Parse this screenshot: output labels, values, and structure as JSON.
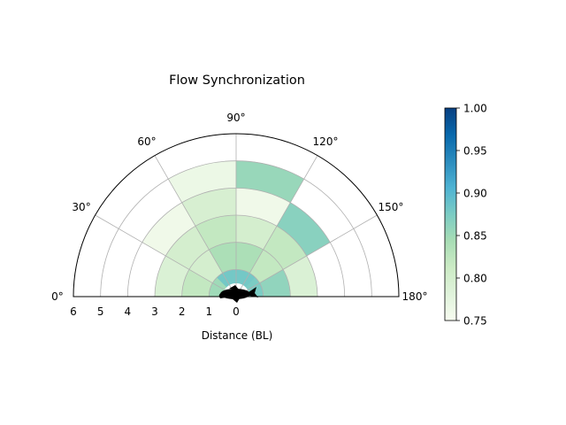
{
  "chart_data": {
    "type": "heatmap",
    "title": "Flow Synchronization",
    "xlabel": "Distance (BL)",
    "radial_range": [
      0,
      6
    ],
    "radial_ticks": [
      "6",
      "5",
      "4",
      "3",
      "2",
      "1",
      "0"
    ],
    "angle_range_deg": [
      0,
      180
    ],
    "angle_ticks": [
      "0°",
      "30°",
      "60°",
      "90°",
      "120°",
      "150°",
      "180°"
    ],
    "grid": true,
    "colormap": "GnBu",
    "colorbar": {
      "vmin": 0.75,
      "vmax": 1.0,
      "ticks": [
        "0.75",
        "0.80",
        "0.85",
        "0.90",
        "0.95",
        "1.00"
      ]
    },
    "sectors": [
      {
        "r": [
          0.5,
          1
        ],
        "theta": [
          0,
          45
        ],
        "value": 0.85
      },
      {
        "r": [
          0.5,
          1
        ],
        "theta": [
          45,
          90
        ],
        "value": 0.88
      },
      {
        "r": [
          0.5,
          1
        ],
        "theta": [
          90,
          135
        ],
        "value": 0.88
      },
      {
        "r": [
          0.5,
          1
        ],
        "theta": [
          135,
          180
        ],
        "value": 0.875
      },
      {
        "r": [
          1,
          2
        ],
        "theta": [
          0,
          30
        ],
        "value": 0.82
      },
      {
        "r": [
          1,
          2
        ],
        "theta": [
          30,
          60
        ],
        "value": 0.8
      },
      {
        "r": [
          1,
          2
        ],
        "theta": [
          60,
          90
        ],
        "value": 0.84
      },
      {
        "r": [
          1,
          2
        ],
        "theta": [
          90,
          120
        ],
        "value": 0.84
      },
      {
        "r": [
          1,
          2
        ],
        "theta": [
          120,
          150
        ],
        "value": 0.82
      },
      {
        "r": [
          1,
          2
        ],
        "theta": [
          150,
          180
        ],
        "value": 0.86
      },
      {
        "r": [
          2,
          3
        ],
        "theta": [
          0,
          30
        ],
        "value": 0.79
      },
      {
        "r": [
          2,
          3
        ],
        "theta": [
          30,
          60
        ],
        "value": 0.8
      },
      {
        "r": [
          2,
          3
        ],
        "theta": [
          60,
          90
        ],
        "value": 0.82
      },
      {
        "r": [
          2,
          3
        ],
        "theta": [
          90,
          120
        ],
        "value": 0.8
      },
      {
        "r": [
          2,
          3
        ],
        "theta": [
          120,
          150
        ],
        "value": 0.82
      },
      {
        "r": [
          2,
          3
        ],
        "theta": [
          150,
          180
        ],
        "value": 0.79
      },
      {
        "r": [
          3,
          4
        ],
        "theta": [
          30,
          60
        ],
        "value": 0.76
      },
      {
        "r": [
          3,
          4
        ],
        "theta": [
          60,
          90
        ],
        "value": 0.795
      },
      {
        "r": [
          3,
          4
        ],
        "theta": [
          90,
          120
        ],
        "value": 0.76
      },
      {
        "r": [
          3,
          4
        ],
        "theta": [
          120,
          150
        ],
        "value": 0.865
      },
      {
        "r": [
          4,
          5
        ],
        "theta": [
          60,
          90
        ],
        "value": 0.765
      },
      {
        "r": [
          4,
          5
        ],
        "theta": [
          90,
          120
        ],
        "value": 0.855
      }
    ]
  }
}
